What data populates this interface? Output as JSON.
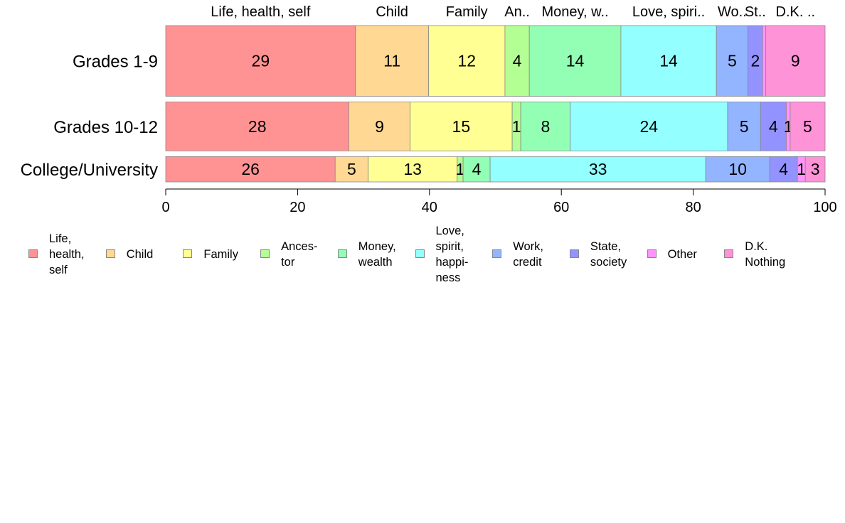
{
  "chart_data": {
    "type": "bar",
    "orientation": "horizontal",
    "stacked": true,
    "categories": [
      "Grades 1-9",
      "Grades 10-12",
      "College/University"
    ],
    "top_labels": [
      "Life, health, self",
      "Child",
      "Family",
      "An..",
      "Money, w..",
      "Love, spiri..",
      "Wo..",
      "St..",
      "",
      "D.K. .."
    ],
    "series": [
      {
        "name": "Life,\nhealth,\nself",
        "values": [
          28.8,
          27.8,
          25.7
        ],
        "labels": [
          "29",
          "28",
          "26"
        ],
        "color": "#ff9393"
      },
      {
        "name": "Child",
        "values": [
          11.1,
          9.3,
          5.0
        ],
        "labels": [
          "11",
          "9",
          "5"
        ],
        "color": "#ffd893"
      },
      {
        "name": "Family",
        "values": [
          11.6,
          15.5,
          13.5
        ],
        "labels": [
          "12",
          "15",
          "13"
        ],
        "color": "#ffff93"
      },
      {
        "name": "Ances-\ntor",
        "values": [
          3.7,
          1.3,
          0.9
        ],
        "labels": [
          "4",
          "1",
          "1"
        ],
        "color": "#b4ff93"
      },
      {
        "name": "Money,\nwealth",
        "values": [
          13.9,
          7.5,
          4.1
        ],
        "labels": [
          "14",
          "8",
          "4"
        ],
        "color": "#93ffb4"
      },
      {
        "name": "Love,\nspirit,\nhappi-\nness",
        "values": [
          14.5,
          23.9,
          32.7
        ],
        "labels": [
          "14",
          "24",
          "33"
        ],
        "color": "#93ffff"
      },
      {
        "name": "Work,\ncredit",
        "values": [
          4.8,
          5.0,
          9.7
        ],
        "labels": [
          "5",
          "5",
          "10"
        ],
        "color": "#93b4ff"
      },
      {
        "name": "State,\nsociety",
        "values": [
          2.2,
          3.9,
          4.2
        ],
        "labels": [
          "2",
          "4",
          "4"
        ],
        "color": "#9393ff"
      },
      {
        "name": "Other",
        "values": [
          0.5,
          0.6,
          1.2
        ],
        "labels": [
          "",
          "1",
          "1"
        ],
        "color": "#ff93ff"
      },
      {
        "name": "D.K.\nNothing",
        "values": [
          9.0,
          5.3,
          3.0
        ],
        "labels": [
          "9",
          "5",
          "3"
        ],
        "color": "#ff93d8"
      }
    ],
    "xlim": [
      0,
      100
    ],
    "xticks": [
      "0",
      "20",
      "40",
      "60",
      "80",
      "100"
    ],
    "row_heights": [
      0.4432,
      0.3068,
      0.1591
    ],
    "legend_placement": "bottom",
    "grid": false
  }
}
